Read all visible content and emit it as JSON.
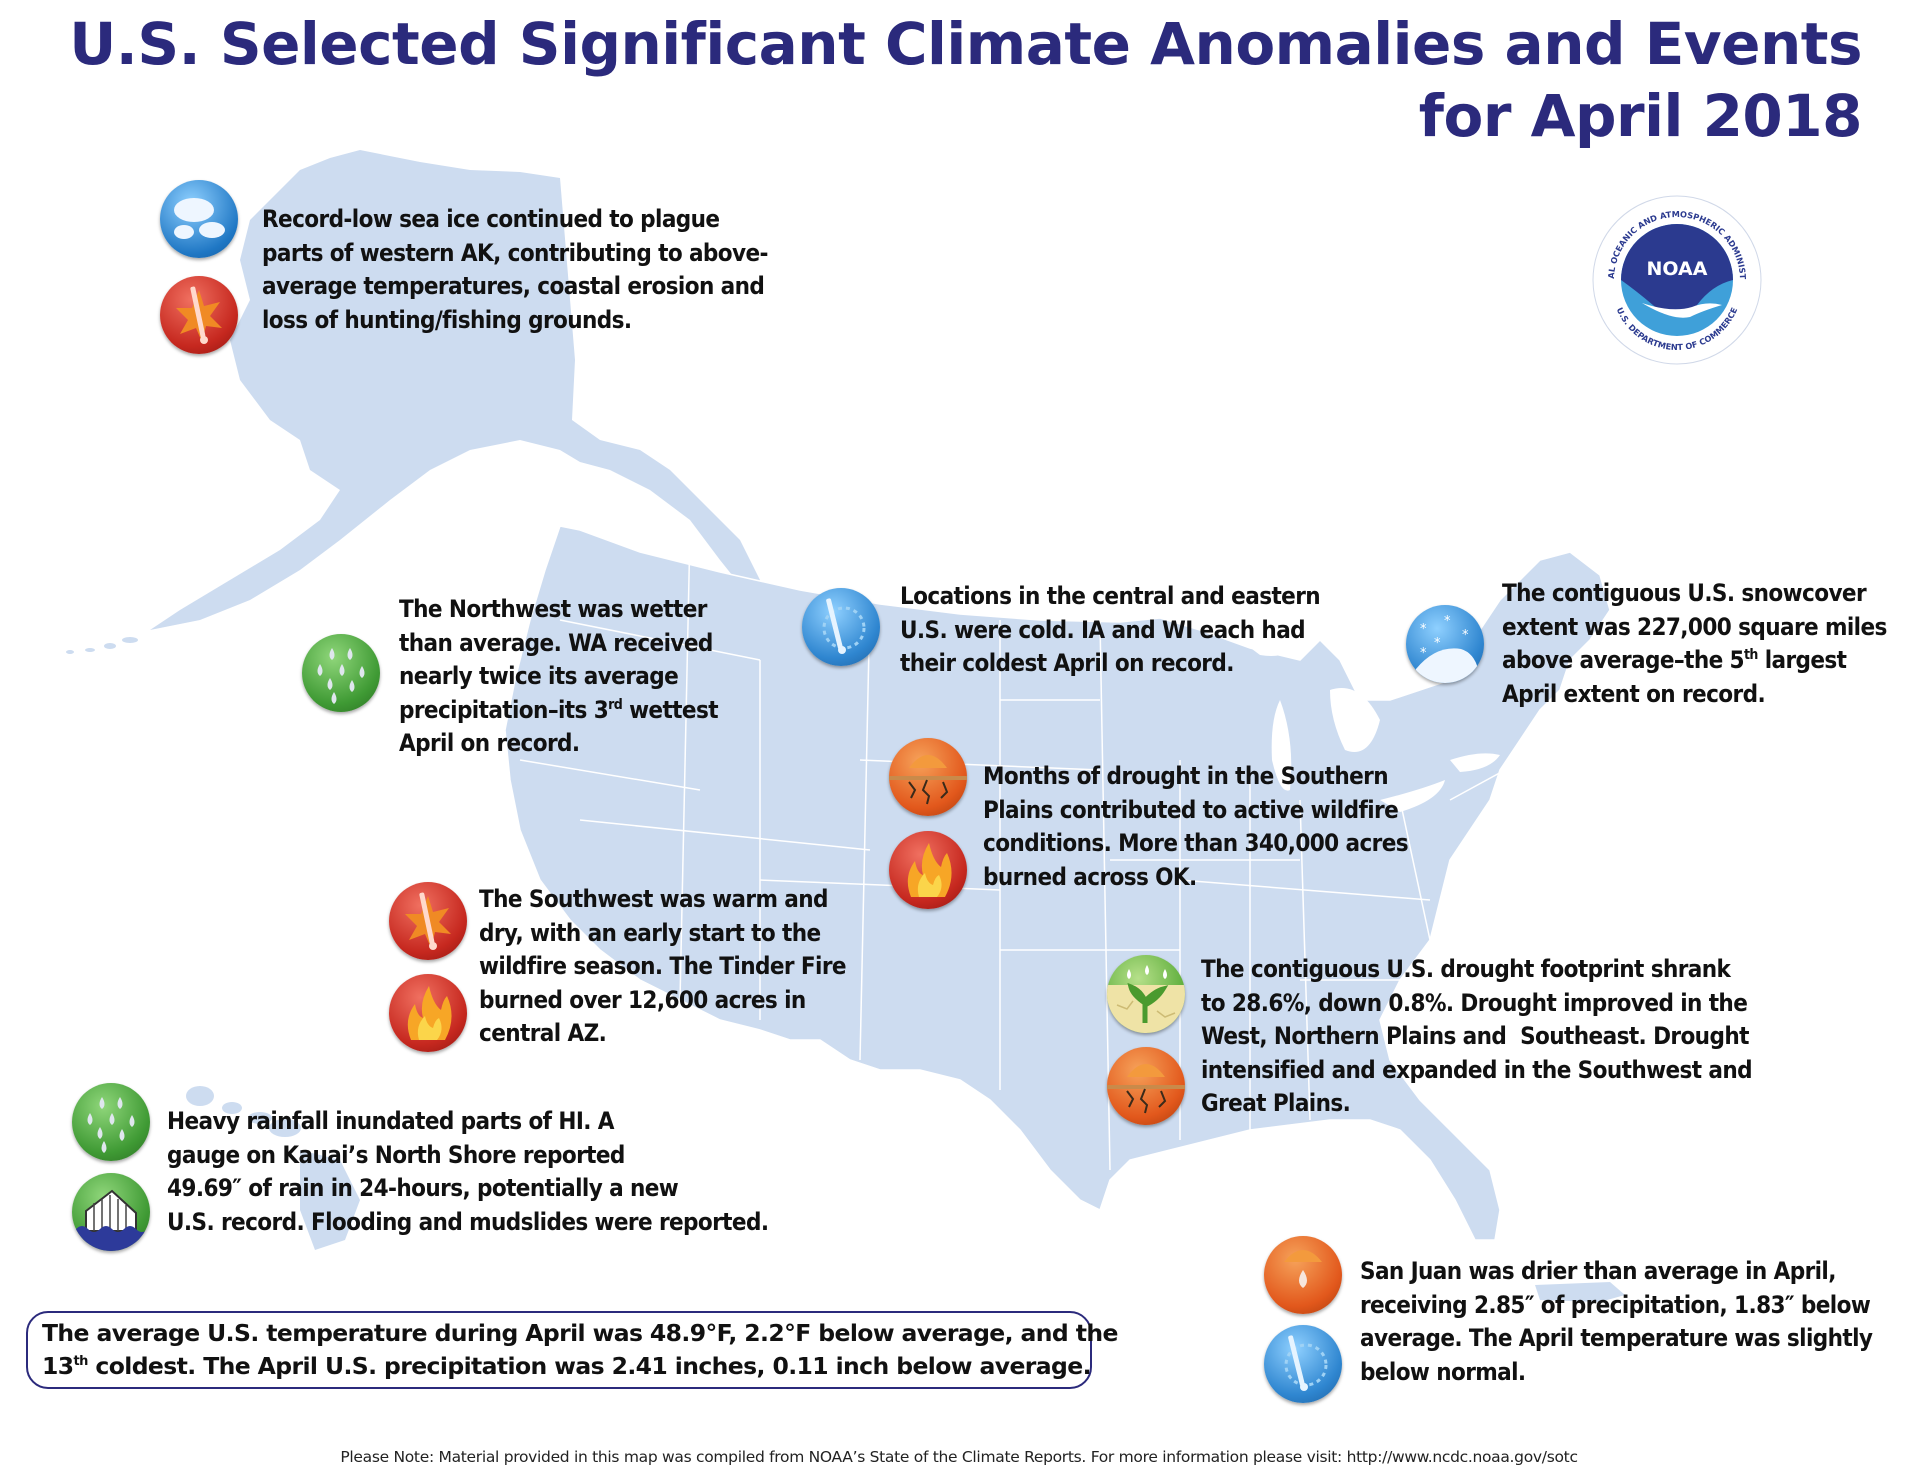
{
  "title": {
    "line1": "U.S. Selected Significant Climate Anomalies and Events",
    "line2": "for April 2018"
  },
  "logo": {
    "name": "NOAA",
    "ring_text_top": "NATIONAL OCEANIC AND ATMOSPHERIC ADMINISTRATION",
    "ring_text_bottom": "U.S. DEPARTMENT OF COMMERCE",
    "colors": {
      "navy": "#2b3a8f",
      "sky": "#3fa0d9"
    }
  },
  "colors": {
    "title": "#2b2a7c",
    "map_fill": "#cddcf0",
    "map_border": "#ffffff",
    "icon_blue": "#2f86d0",
    "icon_red": "#c6281f",
    "icon_orange": "#e2581c",
    "icon_green": "#3f9a34"
  },
  "events": [
    {
      "id": "alaska",
      "icons": [
        "sea-ice-icon",
        "warm-thermometer-icon"
      ],
      "lines": [
        "Record-low sea ice continued to plague",
        "parts of western AK, contributing to above-",
        "average temperatures, coastal erosion and",
        "loss of hunting/fishing grounds."
      ]
    },
    {
      "id": "northwest",
      "icons": [
        "rain-drops-icon"
      ],
      "lines": [
        "The Northwest was wetter",
        "than average. WA received",
        "nearly twice its average",
        "precipitation–its 3",
        "April on record."
      ],
      "sup": "rd",
      "line4_tail": " wettest"
    },
    {
      "id": "central-east",
      "icons": [
        "cold-thermometer-icon"
      ],
      "lines": [
        "Locations in the central and eastern",
        "U.S. were cold. IA and WI each had",
        "their coldest April on record."
      ]
    },
    {
      "id": "snowcover",
      "icons": [
        "snow-icon"
      ],
      "lines": [
        "The contiguous U.S. snowcover",
        "extent was 227,000 square miles",
        "above average–the 5",
        "April extent on record."
      ],
      "sup": "th",
      "line3_tail": " largest"
    },
    {
      "id": "southern-plains",
      "icons": [
        "drought-icon",
        "wildfire-icon"
      ],
      "lines": [
        "Months of drought in the Southern",
        "Plains contributed to active wildfire",
        "conditions. More than 340,000 acres",
        "burned across OK."
      ]
    },
    {
      "id": "southwest",
      "icons": [
        "warm-thermometer-icon",
        "wildfire-icon"
      ],
      "lines": [
        "The Southwest was warm and",
        "dry, with an early start to the",
        "wildfire season. The Tinder Fire",
        "burned over 12,600 acres in",
        "central AZ."
      ]
    },
    {
      "id": "drought-footprint",
      "icons": [
        "drought-improvement-icon",
        "drought-icon"
      ],
      "lines": [
        "The contiguous U.S. drought footprint shrank",
        "to 28.6%, down 0.8%. Drought improved in the",
        "West, Northern Plains and  Southeast. Drought",
        "intensified and expanded in the Southwest and",
        "Great Plains."
      ]
    },
    {
      "id": "hawaii",
      "icons": [
        "rain-drops-icon",
        "flooding-icon"
      ],
      "lines": [
        "Heavy rainfall inundated parts of HI. A",
        "gauge on Kauai’s North Shore reported",
        "49.69″ of rain in 24-hours, potentially a new",
        "U.S. record. Flooding and mudslides were reported."
      ]
    },
    {
      "id": "san-juan",
      "icons": [
        "dry-drop-icon",
        "cold-thermometer-icon"
      ],
      "lines": [
        "San Juan was drier than average in April,",
        "receiving 2.85″ of precipitation, 1.83″ below",
        "average. The April temperature was slightly",
        "below normal."
      ]
    }
  ],
  "summary": {
    "line1": "The average U.S. temperature during April was 48.9°F, 2.2°F below average, and the",
    "line2_prefix": "13",
    "line2_sup": "th",
    "line2_rest": " coldest. The April U.S. precipitation was 2.41 inches, 0.11 inch below average."
  },
  "footer": "Please Note: Material provided in this map was compiled from NOAA’s State of the Climate Reports. For more information please visit: http://www.ncdc.noaa.gov/sotc"
}
